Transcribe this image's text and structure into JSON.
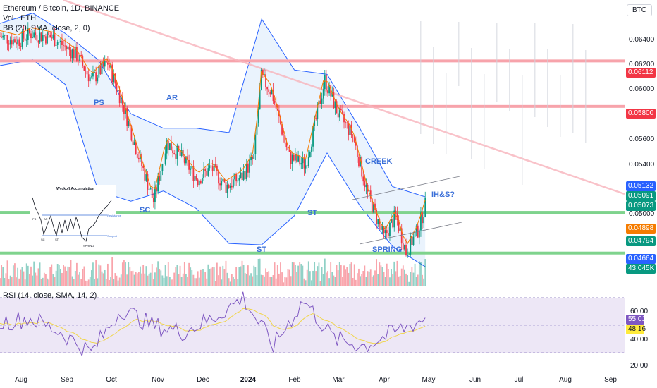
{
  "header": {
    "title": "Ethereum / Bitcoin, 1D, BINANCE",
    "vol": "Vol · ETH",
    "bb": "BB (20, SMA, close, 2, 0)",
    "rsi": "RSI (14, close, SMA, 14, 2)",
    "currency": "BTC"
  },
  "price_axis": [
    "0.06400",
    "0.06200",
    "0.06000",
    "0.05600",
    "0.05400",
    "0.05000"
  ],
  "price_tags": [
    {
      "label": "0.06112",
      "color": "#f23645",
      "value": 0.06112
    },
    {
      "label": "0.05800",
      "color": "#f23645",
      "value": 0.058
    },
    {
      "label": "0.05132",
      "color": "#2962ff",
      "value": 0.05132
    },
    {
      "label": "0.05091",
      "color": "#089981",
      "value": 0.05091
    },
    {
      "label": "0.05073",
      "color": "#089981",
      "value": 0.05073
    },
    {
      "label": "0.04898",
      "color": "#f57c00",
      "value": 0.04898
    },
    {
      "label": "0.04794",
      "color": "#089981",
      "value": 0.04794
    },
    {
      "label": "0.04664",
      "color": "#2962ff",
      "value": 0.04664
    },
    {
      "label": "43.045K",
      "color": "#089981",
      "value": 43045
    }
  ],
  "rsi_axis": [
    "60.00",
    "40.00",
    "20.00"
  ],
  "rsi_tags": [
    {
      "label": "55.01",
      "color": "#7e57c2",
      "value": 55.01
    },
    {
      "label": "48.16",
      "color": "#ffeb3b",
      "value": 48.16
    }
  ],
  "x_labels": [
    "Aug",
    "Sep",
    "Oct",
    "Nov",
    "Dec",
    "2024",
    "Feb",
    "Mar",
    "Apr",
    "May",
    "Jun",
    "Jul",
    "Aug",
    "Sep"
  ],
  "annotations": [
    "PS",
    "AR",
    "SC",
    "ST",
    "ST",
    "CREEK",
    "SPRING",
    "IH&S?"
  ],
  "inset": {
    "title": "Wyckoff Accumulation",
    "labels": [
      "PS",
      "AR",
      "SC",
      "ST",
      "SPRING",
      "Resistance",
      "Support"
    ]
  },
  "colors": {
    "resistance": "#f7a3ab",
    "support": "#7fd38d",
    "bb_band": "#2962ff",
    "bb_fill": "#e3effc",
    "basis": "#f57c00",
    "up": "#089981",
    "down": "#f23645",
    "rsi": "#7e57c2",
    "rsi_ma": "#f0d54b",
    "rsi_bg": "#ede7f6",
    "annotation": "#3a6fd8"
  },
  "chart_data": {
    "type": "candlestick",
    "title": "Ethereum / Bitcoin, 1D, BINANCE",
    "x_range": [
      "2023-07-20",
      "2024-09-15"
    ],
    "y_range": [
      0.0457,
      0.0653
    ],
    "horizontal_levels": [
      0.06112,
      0.058,
      0.05073,
      0.04794
    ],
    "close_series": [
      {
        "date": "2023-07-20",
        "close": 0.0628
      },
      {
        "date": "2023-08-01",
        "close": 0.0625
      },
      {
        "date": "2023-08-10",
        "close": 0.063
      },
      {
        "date": "2023-08-25",
        "close": 0.0627
      },
      {
        "date": "2023-09-10",
        "close": 0.0615
      },
      {
        "date": "2023-09-20",
        "close": 0.0598
      },
      {
        "date": "2023-10-01",
        "close": 0.061
      },
      {
        "date": "2023-10-10",
        "close": 0.0585
      },
      {
        "date": "2023-10-20",
        "close": 0.0552
      },
      {
        "date": "2023-11-01",
        "close": 0.0515
      },
      {
        "date": "2023-11-10",
        "close": 0.0555
      },
      {
        "date": "2023-11-20",
        "close": 0.0545
      },
      {
        "date": "2023-12-01",
        "close": 0.053
      },
      {
        "date": "2023-12-10",
        "close": 0.0538
      },
      {
        "date": "2023-12-20",
        "close": 0.0525
      },
      {
        "date": "2023-12-31",
        "close": 0.0532
      },
      {
        "date": "2024-01-08",
        "close": 0.0545
      },
      {
        "date": "2024-01-13",
        "close": 0.06
      },
      {
        "date": "2024-01-20",
        "close": 0.059
      },
      {
        "date": "2024-02-01",
        "close": 0.0545
      },
      {
        "date": "2024-02-12",
        "close": 0.054
      },
      {
        "date": "2024-02-25",
        "close": 0.0598
      },
      {
        "date": "2024-03-05",
        "close": 0.0575
      },
      {
        "date": "2024-03-15",
        "close": 0.056
      },
      {
        "date": "2024-03-25",
        "close": 0.052
      },
      {
        "date": "2024-04-05",
        "close": 0.049
      },
      {
        "date": "2024-04-13",
        "close": 0.0505
      },
      {
        "date": "2024-04-20",
        "close": 0.048
      },
      {
        "date": "2024-04-28",
        "close": 0.0495
      },
      {
        "date": "2024-05-03",
        "close": 0.0512
      }
    ],
    "bb_upper": [
      0.0637,
      0.0644,
      0.063,
      0.0612,
      0.0575,
      0.0565,
      0.0565,
      0.0562,
      0.064,
      0.0605,
      0.0602,
      0.0565,
      0.0525,
      0.0518
    ],
    "bb_lower": [
      0.0608,
      0.0612,
      0.0595,
      0.0522,
      0.0515,
      0.0522,
      0.051,
      0.0486,
      0.0485,
      0.0505,
      0.0548,
      0.0512,
      0.0484,
      0.047
    ],
    "rsi": [
      52,
      55,
      45,
      30,
      62,
      50,
      45,
      55,
      70,
      35,
      68,
      40,
      35,
      45,
      55
    ]
  }
}
